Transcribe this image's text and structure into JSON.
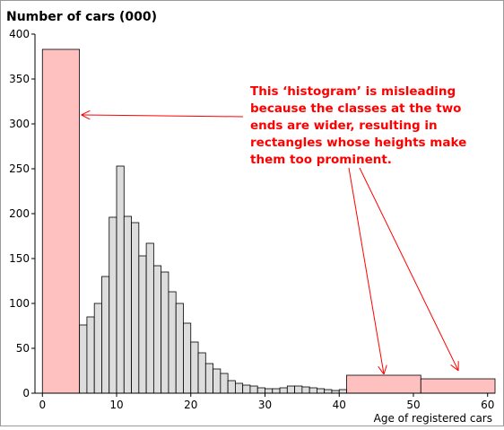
{
  "chart_data": {
    "type": "bar",
    "ylabel": "Number of cars (000)",
    "xlabel": "Age of registered cars",
    "xlim": [
      -1,
      61
    ],
    "ylim": [
      0,
      400
    ],
    "x_ticks": [
      0,
      10,
      20,
      30,
      40,
      50,
      60
    ],
    "y_ticks": [
      0,
      50,
      100,
      150,
      200,
      250,
      300,
      350,
      400
    ],
    "colors": {
      "wide_bins": "#ffc0c0",
      "narrow_bins": "#dddddd",
      "annotation": "#ff0000",
      "outline": "#000000"
    },
    "bins": [
      {
        "x0": 0,
        "x1": 5,
        "value": 383,
        "wide": true
      },
      {
        "x0": 5,
        "x1": 6,
        "value": 76
      },
      {
        "x0": 6,
        "x1": 7,
        "value": 85
      },
      {
        "x0": 7,
        "x1": 8,
        "value": 100
      },
      {
        "x0": 8,
        "x1": 9,
        "value": 130
      },
      {
        "x0": 9,
        "x1": 10,
        "value": 196
      },
      {
        "x0": 10,
        "x1": 11,
        "value": 253
      },
      {
        "x0": 11,
        "x1": 12,
        "value": 197
      },
      {
        "x0": 12,
        "x1": 13,
        "value": 190
      },
      {
        "x0": 13,
        "x1": 14,
        "value": 153
      },
      {
        "x0": 14,
        "x1": 15,
        "value": 167
      },
      {
        "x0": 15,
        "x1": 16,
        "value": 142
      },
      {
        "x0": 16,
        "x1": 17,
        "value": 135
      },
      {
        "x0": 17,
        "x1": 18,
        "value": 113
      },
      {
        "x0": 18,
        "x1": 19,
        "value": 100
      },
      {
        "x0": 19,
        "x1": 20,
        "value": 78
      },
      {
        "x0": 20,
        "x1": 21,
        "value": 57
      },
      {
        "x0": 21,
        "x1": 22,
        "value": 45
      },
      {
        "x0": 22,
        "x1": 23,
        "value": 33
      },
      {
        "x0": 23,
        "x1": 24,
        "value": 27
      },
      {
        "x0": 24,
        "x1": 25,
        "value": 22
      },
      {
        "x0": 25,
        "x1": 26,
        "value": 14
      },
      {
        "x0": 26,
        "x1": 27,
        "value": 11
      },
      {
        "x0": 27,
        "x1": 28,
        "value": 9
      },
      {
        "x0": 28,
        "x1": 29,
        "value": 8
      },
      {
        "x0": 29,
        "x1": 30,
        "value": 6
      },
      {
        "x0": 30,
        "x1": 31,
        "value": 5
      },
      {
        "x0": 31,
        "x1": 32,
        "value": 5
      },
      {
        "x0": 32,
        "x1": 33,
        "value": 6
      },
      {
        "x0": 33,
        "x1": 34,
        "value": 8
      },
      {
        "x0": 34,
        "x1": 35,
        "value": 8
      },
      {
        "x0": 35,
        "x1": 36,
        "value": 7
      },
      {
        "x0": 36,
        "x1": 37,
        "value": 6
      },
      {
        "x0": 37,
        "x1": 38,
        "value": 5
      },
      {
        "x0": 38,
        "x1": 39,
        "value": 4
      },
      {
        "x0": 39,
        "x1": 40,
        "value": 3
      },
      {
        "x0": 40,
        "x1": 41,
        "value": 4
      },
      {
        "x0": 41,
        "x1": 51,
        "value": 20,
        "wide": true
      },
      {
        "x0": 51,
        "x1": 61,
        "value": 16,
        "wide": true
      }
    ],
    "annotation": {
      "lines": [
        "This ‘histogram’ is misleading",
        "because the classes at the two",
        "ends are wider, resulting in",
        "rectangles whose heights make",
        "them too prominent."
      ],
      "arrow_targets": [
        {
          "x": 5,
          "y": 310
        },
        {
          "x": 46,
          "y": 22
        },
        {
          "x": 56,
          "y": 26
        }
      ]
    }
  }
}
